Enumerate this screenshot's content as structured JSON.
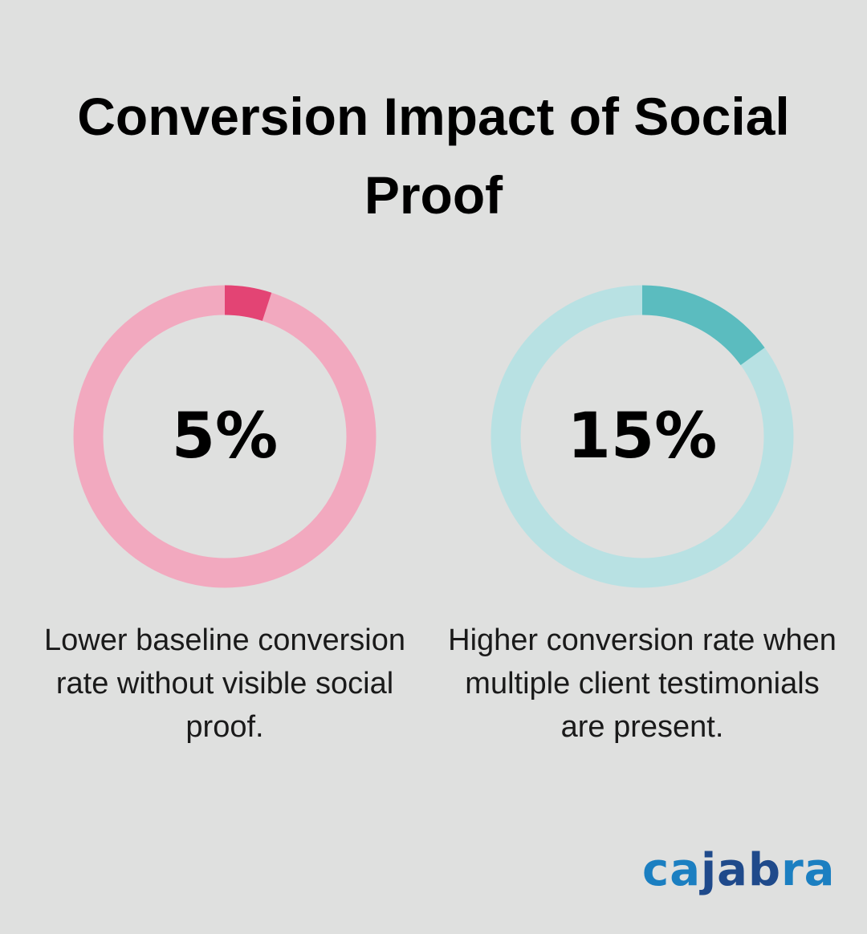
{
  "title": "Conversion Impact of Social Proof",
  "chart_data": [
    {
      "type": "pie",
      "variant": "donut",
      "value": 5,
      "max": 100,
      "label": "5%",
      "caption": "Lower baseline conversion rate without visible social proof.",
      "colors": {
        "fill": "#e34474",
        "track": "#f2a9bf"
      }
    },
    {
      "type": "pie",
      "variant": "donut",
      "value": 15,
      "max": 100,
      "label": "15%",
      "caption": "Higher conversion rate when multiple client testimonials are present.",
      "colors": {
        "fill": "#5bbcbf",
        "track": "#b8e1e3"
      }
    }
  ],
  "logo": {
    "part1": "ca",
    "part2": "jab",
    "part3": "ra",
    "colors": {
      "light": "#1b7fc1",
      "dark": "#1f4a8b"
    }
  }
}
